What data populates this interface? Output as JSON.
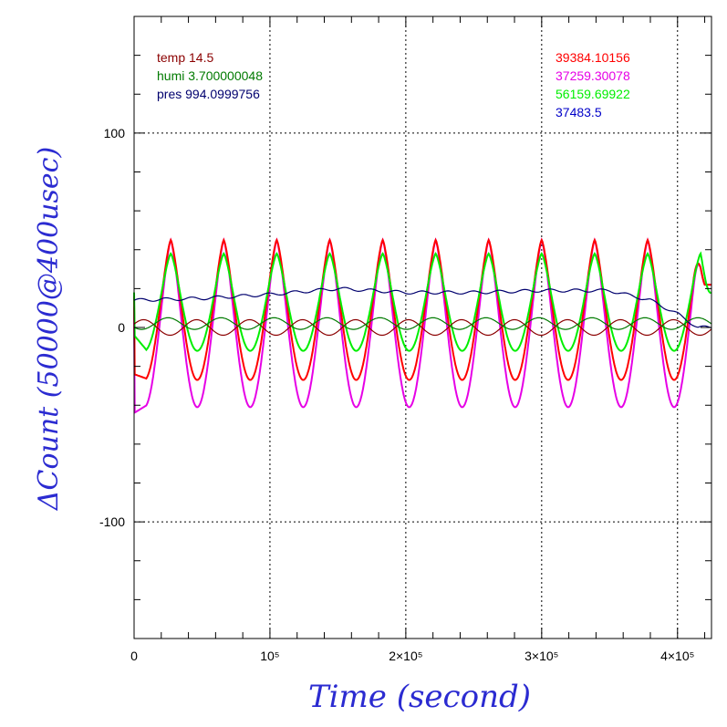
{
  "chart_data": {
    "type": "line",
    "xlabel": "Time (second)",
    "ylabel": "ΔCount (50000@400usec)",
    "xlim": [
      0,
      425000
    ],
    "ylim": [
      -160,
      160
    ],
    "grid": true,
    "x_ticks": [
      {
        "value": 0,
        "label": "0"
      },
      {
        "value": 100000,
        "label": "10⁵"
      },
      {
        "value": 200000,
        "label": "2×10⁵"
      },
      {
        "value": 300000,
        "label": "3×10⁵"
      },
      {
        "value": 400000,
        "label": "4×10⁵"
      }
    ],
    "y_ticks": [
      {
        "value": 100,
        "label": "100"
      },
      {
        "value": 0,
        "label": "0"
      },
      {
        "value": -100,
        "label": "-100"
      }
    ],
    "legend_left": [
      {
        "text": "temp 14.5",
        "color": "#8b0000"
      },
      {
        "text": "humi 3.700000048",
        "color": "#007a00"
      },
      {
        "text": "pres 994.0999756",
        "color": "#00006e"
      }
    ],
    "legend_right": [
      {
        "text": "39384.10156",
        "color": "#ff0000"
      },
      {
        "text": "37259.30078",
        "color": "#e600e6"
      },
      {
        "text": "56159.69922",
        "color": "#00ee00"
      },
      {
        "text": "37483.5",
        "color": "#0000c8"
      }
    ],
    "series": [
      {
        "color": "#e600e6",
        "period": 39000,
        "peak_x": 27000,
        "mean": 2,
        "amplitude": 43,
        "shape": "cusp",
        "start_min": -44,
        "end_x": 420000,
        "end_y": 22
      },
      {
        "color": "#ff0000",
        "period": 39000,
        "peak_x": 27000,
        "mean": 9,
        "amplitude": 36,
        "shape": "cusp",
        "start_min": -24,
        "end_x": 420000,
        "end_y": 22
      },
      {
        "color": "#00ee00",
        "period": 39000,
        "peak_x": 27000,
        "mean": 13,
        "amplitude": 25,
        "shape": "cusp",
        "start_min": -4,
        "end_x": 425000,
        "end_y": 18
      },
      {
        "color": "#00006e",
        "period": 0,
        "mean": 17,
        "amplitude": 0,
        "shape": "drift",
        "points": [
          [
            0,
            14
          ],
          [
            50000,
            15
          ],
          [
            100000,
            17
          ],
          [
            150000,
            20
          ],
          [
            200000,
            18
          ],
          [
            250000,
            18
          ],
          [
            300000,
            19
          ],
          [
            350000,
            19
          ],
          [
            380000,
            14
          ],
          [
            400000,
            7
          ],
          [
            415000,
            0
          ],
          [
            425000,
            0
          ]
        ]
      },
      {
        "color": "#8b0000",
        "period": 39000,
        "peak_x": 7000,
        "mean": 0,
        "amplitude": 4,
        "shape": "sine"
      },
      {
        "color": "#007a00",
        "period": 39000,
        "peak_x": 25000,
        "mean": 2,
        "amplitude": 3,
        "shape": "sine"
      }
    ]
  }
}
